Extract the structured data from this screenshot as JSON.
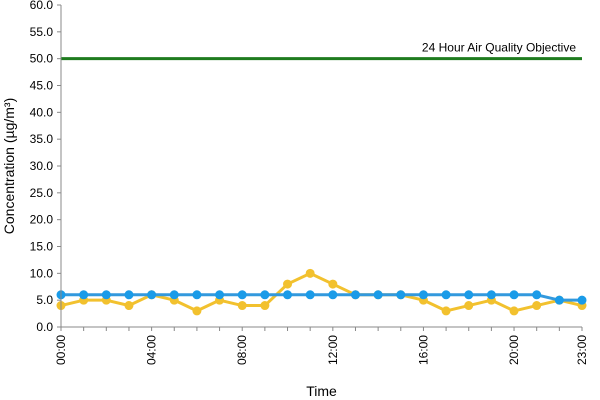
{
  "chart_data": {
    "type": "line",
    "title": "",
    "xlabel": "Time",
    "ylabel": "Concentration (µg/m³)",
    "ylim": [
      0,
      60
    ],
    "y_ticks": [
      "0.0",
      "5.0",
      "10.0",
      "15.0",
      "20.0",
      "25.0",
      "30.0",
      "35.0",
      "40.0",
      "45.0",
      "50.0",
      "55.0",
      "60.0"
    ],
    "x_ticks": [
      "00:00",
      "04:00",
      "08:00",
      "12:00",
      "16:00",
      "20:00",
      "23:00"
    ],
    "x": [
      0,
      1,
      2,
      3,
      4,
      5,
      6,
      7,
      8,
      9,
      10,
      11,
      12,
      13,
      14,
      15,
      16,
      17,
      18,
      19,
      20,
      21,
      22,
      23
    ],
    "grid": false,
    "legend": "none",
    "series": [
      {
        "color": "#f2c12e",
        "marker_color": "#f2c12e",
        "values": [
          4,
          5,
          5,
          4,
          6,
          5,
          3,
          5,
          4,
          4,
          8,
          10,
          8,
          6,
          6,
          6,
          5,
          3,
          4,
          5,
          3,
          4,
          5,
          4
        ]
      },
      {
        "color": "#3399dd",
        "marker_color": "#1a9be8",
        "values": [
          6,
          6,
          6,
          6,
          6,
          6,
          6,
          6,
          6,
          6,
          6,
          6,
          6,
          6,
          6,
          6,
          6,
          6,
          6,
          6,
          6,
          6,
          5,
          5
        ]
      }
    ],
    "reference_line": {
      "value": 50,
      "label": "24 Hour Air Quality Objective",
      "color": "#1e7b1e"
    }
  }
}
